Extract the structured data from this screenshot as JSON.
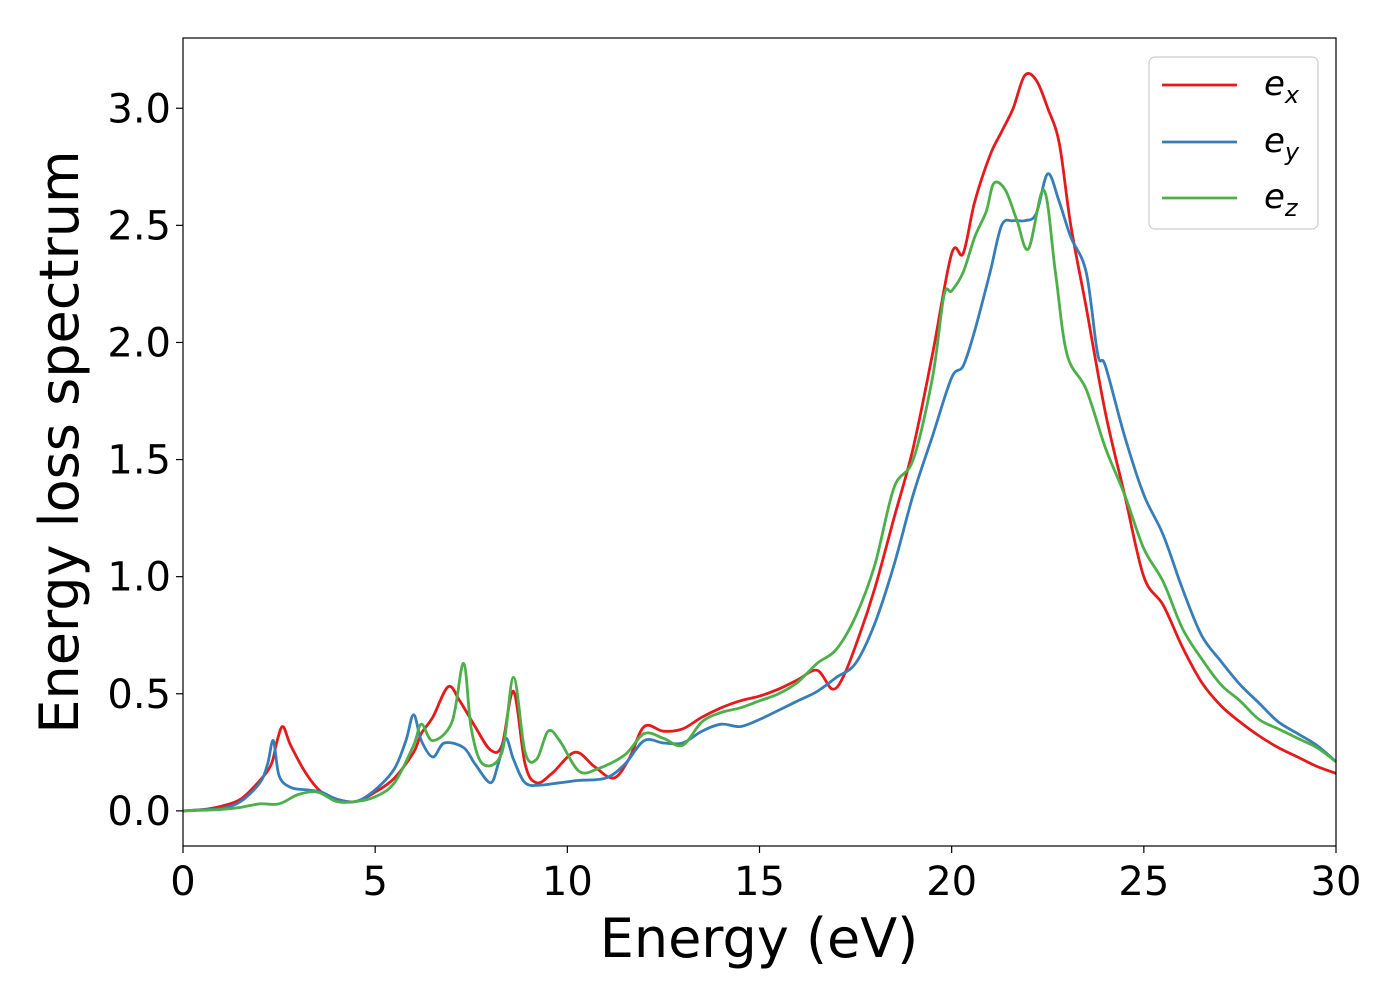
{
  "chart_data": {
    "type": "line",
    "xlabel": "Energy (eV)",
    "ylabel": "Energy loss spectrum",
    "xlim": [
      0,
      30
    ],
    "ylim": [
      -0.15,
      3.3
    ],
    "x_ticks": [
      "0",
      "5",
      "10",
      "15",
      "20",
      "25",
      "30"
    ],
    "y_ticks": [
      "0.0",
      "0.5",
      "1.0",
      "1.5",
      "2.0",
      "2.5",
      "3.0"
    ],
    "grid": false,
    "legend_position": "top-right",
    "series": [
      {
        "name": "e_x",
        "legend_base": "e",
        "legend_sub": "x",
        "color": "#e41a1c",
        "points": [
          [
            0,
            0
          ],
          [
            0.5,
            0.005
          ],
          [
            1.0,
            0.02
          ],
          [
            1.5,
            0.05
          ],
          [
            2.0,
            0.13
          ],
          [
            2.3,
            0.2
          ],
          [
            2.45,
            0.3
          ],
          [
            2.6,
            0.36
          ],
          [
            2.8,
            0.28
          ],
          [
            3.2,
            0.16
          ],
          [
            3.6,
            0.08
          ],
          [
            4.0,
            0.05
          ],
          [
            4.5,
            0.04
          ],
          [
            5.0,
            0.08
          ],
          [
            5.5,
            0.14
          ],
          [
            6.0,
            0.25
          ],
          [
            6.2,
            0.33
          ],
          [
            6.5,
            0.4
          ],
          [
            6.9,
            0.53
          ],
          [
            7.2,
            0.47
          ],
          [
            7.6,
            0.36
          ],
          [
            8.0,
            0.26
          ],
          [
            8.3,
            0.28
          ],
          [
            8.6,
            0.51
          ],
          [
            8.9,
            0.2
          ],
          [
            9.2,
            0.12
          ],
          [
            9.6,
            0.16
          ],
          [
            10.2,
            0.25
          ],
          [
            10.7,
            0.19
          ],
          [
            11.2,
            0.14
          ],
          [
            11.6,
            0.22
          ],
          [
            12.0,
            0.36
          ],
          [
            12.5,
            0.34
          ],
          [
            13.0,
            0.35
          ],
          [
            13.5,
            0.4
          ],
          [
            14.0,
            0.44
          ],
          [
            14.5,
            0.47
          ],
          [
            15.0,
            0.49
          ],
          [
            15.5,
            0.52
          ],
          [
            16.0,
            0.56
          ],
          [
            16.5,
            0.6
          ],
          [
            16.9,
            0.52
          ],
          [
            17.2,
            0.58
          ],
          [
            17.6,
            0.75
          ],
          [
            18.0,
            0.95
          ],
          [
            18.5,
            1.25
          ],
          [
            19.0,
            1.55
          ],
          [
            19.5,
            1.95
          ],
          [
            20.0,
            2.38
          ],
          [
            20.3,
            2.38
          ],
          [
            20.6,
            2.6
          ],
          [
            21.0,
            2.8
          ],
          [
            21.3,
            2.9
          ],
          [
            21.6,
            3.0
          ],
          [
            21.9,
            3.14
          ],
          [
            22.2,
            3.12
          ],
          [
            22.5,
            3.0
          ],
          [
            22.8,
            2.85
          ],
          [
            23.1,
            2.5
          ],
          [
            23.5,
            2.15
          ],
          [
            24.0,
            1.7
          ],
          [
            24.5,
            1.35
          ],
          [
            25.0,
            1.0
          ],
          [
            25.5,
            0.88
          ],
          [
            26.0,
            0.7
          ],
          [
            26.5,
            0.55
          ],
          [
            27.0,
            0.45
          ],
          [
            27.5,
            0.38
          ],
          [
            28.0,
            0.32
          ],
          [
            28.5,
            0.27
          ],
          [
            29.0,
            0.23
          ],
          [
            29.5,
            0.19
          ],
          [
            30.0,
            0.16
          ]
        ]
      },
      {
        "name": "e_y",
        "legend_base": "e",
        "legend_sub": "y",
        "color": "#377eb8",
        "points": [
          [
            0,
            0
          ],
          [
            0.5,
            0.005
          ],
          [
            1.0,
            0.01
          ],
          [
            1.5,
            0.04
          ],
          [
            2.0,
            0.12
          ],
          [
            2.2,
            0.2
          ],
          [
            2.35,
            0.3
          ],
          [
            2.5,
            0.15
          ],
          [
            2.8,
            0.1
          ],
          [
            3.2,
            0.09
          ],
          [
            3.6,
            0.08
          ],
          [
            4.0,
            0.05
          ],
          [
            4.5,
            0.04
          ],
          [
            5.0,
            0.09
          ],
          [
            5.5,
            0.18
          ],
          [
            5.8,
            0.3
          ],
          [
            6.0,
            0.41
          ],
          [
            6.2,
            0.3
          ],
          [
            6.5,
            0.23
          ],
          [
            6.8,
            0.29
          ],
          [
            7.3,
            0.27
          ],
          [
            7.6,
            0.2
          ],
          [
            8.0,
            0.12
          ],
          [
            8.2,
            0.2
          ],
          [
            8.4,
            0.31
          ],
          [
            8.6,
            0.22
          ],
          [
            8.9,
            0.12
          ],
          [
            9.3,
            0.11
          ],
          [
            9.8,
            0.12
          ],
          [
            10.3,
            0.13
          ],
          [
            11.0,
            0.14
          ],
          [
            11.5,
            0.2
          ],
          [
            12.0,
            0.3
          ],
          [
            12.5,
            0.29
          ],
          [
            13.0,
            0.29
          ],
          [
            13.5,
            0.34
          ],
          [
            14.0,
            0.37
          ],
          [
            14.5,
            0.36
          ],
          [
            15.0,
            0.39
          ],
          [
            15.5,
            0.43
          ],
          [
            16.0,
            0.47
          ],
          [
            16.5,
            0.51
          ],
          [
            17.0,
            0.57
          ],
          [
            17.5,
            0.63
          ],
          [
            18.0,
            0.8
          ],
          [
            18.5,
            1.05
          ],
          [
            19.0,
            1.35
          ],
          [
            19.5,
            1.6
          ],
          [
            20.0,
            1.85
          ],
          [
            20.3,
            1.9
          ],
          [
            20.6,
            2.05
          ],
          [
            21.0,
            2.3
          ],
          [
            21.3,
            2.5
          ],
          [
            21.6,
            2.52
          ],
          [
            21.9,
            2.52
          ],
          [
            22.2,
            2.55
          ],
          [
            22.5,
            2.72
          ],
          [
            22.8,
            2.6
          ],
          [
            23.1,
            2.45
          ],
          [
            23.5,
            2.3
          ],
          [
            23.8,
            1.95
          ],
          [
            24.0,
            1.9
          ],
          [
            24.5,
            1.6
          ],
          [
            25.0,
            1.35
          ],
          [
            25.5,
            1.18
          ],
          [
            26.0,
            0.95
          ],
          [
            26.5,
            0.75
          ],
          [
            27.0,
            0.64
          ],
          [
            27.5,
            0.54
          ],
          [
            28.0,
            0.46
          ],
          [
            28.5,
            0.38
          ],
          [
            29.0,
            0.33
          ],
          [
            29.5,
            0.28
          ],
          [
            30.0,
            0.21
          ]
        ]
      },
      {
        "name": "e_z",
        "legend_base": "e",
        "legend_sub": "z",
        "color": "#4daf4a",
        "points": [
          [
            0,
            0
          ],
          [
            0.5,
            0.003
          ],
          [
            1.0,
            0.006
          ],
          [
            1.5,
            0.015
          ],
          [
            2.0,
            0.03
          ],
          [
            2.5,
            0.03
          ],
          [
            3.0,
            0.07
          ],
          [
            3.5,
            0.08
          ],
          [
            4.0,
            0.04
          ],
          [
            4.5,
            0.04
          ],
          [
            5.0,
            0.06
          ],
          [
            5.5,
            0.12
          ],
          [
            6.0,
            0.28
          ],
          [
            6.2,
            0.37
          ],
          [
            6.5,
            0.3
          ],
          [
            7.0,
            0.38
          ],
          [
            7.3,
            0.63
          ],
          [
            7.5,
            0.35
          ],
          [
            7.8,
            0.2
          ],
          [
            8.3,
            0.25
          ],
          [
            8.6,
            0.57
          ],
          [
            8.9,
            0.25
          ],
          [
            9.2,
            0.22
          ],
          [
            9.5,
            0.34
          ],
          [
            9.8,
            0.3
          ],
          [
            10.3,
            0.17
          ],
          [
            10.8,
            0.18
          ],
          [
            11.5,
            0.24
          ],
          [
            12.0,
            0.33
          ],
          [
            12.5,
            0.31
          ],
          [
            13.0,
            0.28
          ],
          [
            13.5,
            0.38
          ],
          [
            14.0,
            0.42
          ],
          [
            14.5,
            0.44
          ],
          [
            15.0,
            0.47
          ],
          [
            15.5,
            0.5
          ],
          [
            16.0,
            0.55
          ],
          [
            16.5,
            0.63
          ],
          [
            17.0,
            0.69
          ],
          [
            17.5,
            0.83
          ],
          [
            18.0,
            1.05
          ],
          [
            18.5,
            1.38
          ],
          [
            19.0,
            1.5
          ],
          [
            19.5,
            1.85
          ],
          [
            19.8,
            2.2
          ],
          [
            20.0,
            2.22
          ],
          [
            20.3,
            2.3
          ],
          [
            20.6,
            2.45
          ],
          [
            20.9,
            2.56
          ],
          [
            21.1,
            2.68
          ],
          [
            21.4,
            2.65
          ],
          [
            21.7,
            2.52
          ],
          [
            22.0,
            2.4
          ],
          [
            22.4,
            2.65
          ],
          [
            22.7,
            2.3
          ],
          [
            23.0,
            1.95
          ],
          [
            23.5,
            1.8
          ],
          [
            24.0,
            1.55
          ],
          [
            24.5,
            1.35
          ],
          [
            25.0,
            1.12
          ],
          [
            25.5,
            0.98
          ],
          [
            26.0,
            0.78
          ],
          [
            26.5,
            0.65
          ],
          [
            27.0,
            0.54
          ],
          [
            27.5,
            0.47
          ],
          [
            28.0,
            0.39
          ],
          [
            28.5,
            0.35
          ],
          [
            29.0,
            0.31
          ],
          [
            29.5,
            0.27
          ],
          [
            30.0,
            0.21
          ]
        ]
      }
    ]
  }
}
